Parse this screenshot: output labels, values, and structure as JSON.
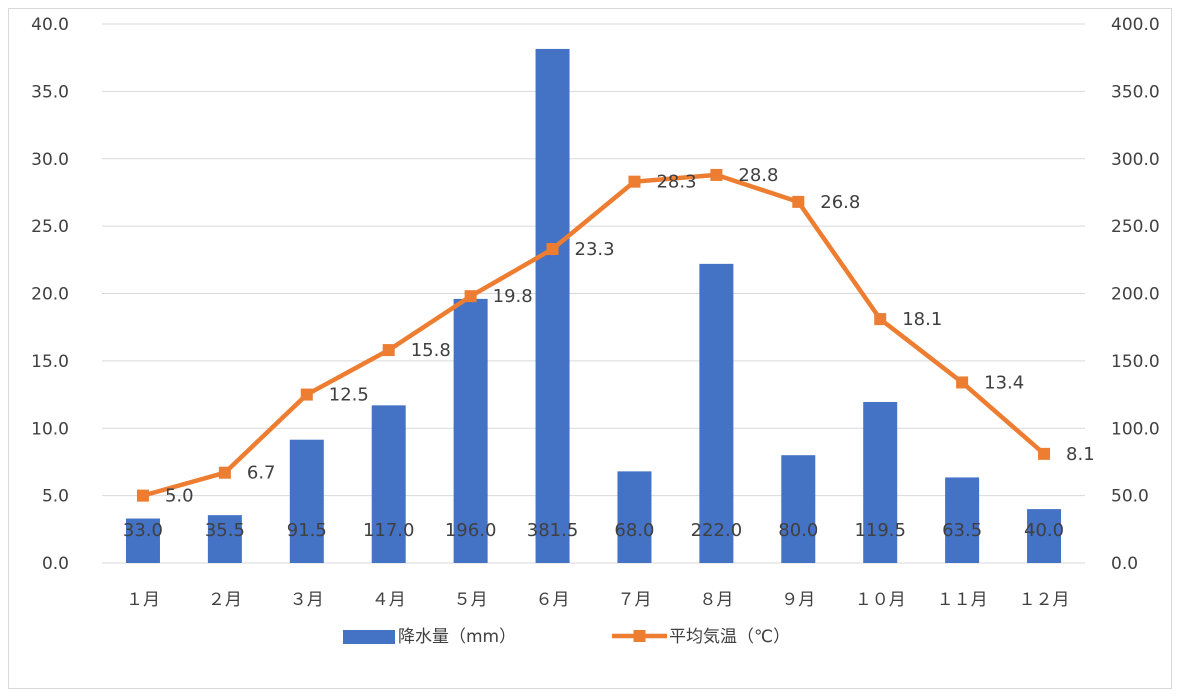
{
  "chart_data": {
    "type": "bar",
    "categories": [
      "１月",
      "２月",
      "３月",
      "４月",
      "５月",
      "６月",
      "７月",
      "８月",
      "９月",
      "１０月",
      "１１月",
      "１２月"
    ],
    "series": [
      {
        "name": "降水量（mm）",
        "type": "bar",
        "axis": "right",
        "color": "#4472C4",
        "values": [
          33.0,
          35.5,
          91.5,
          117.0,
          196.0,
          381.5,
          68.0,
          222.0,
          80.0,
          119.5,
          63.5,
          40.0
        ],
        "labels": [
          "33.0",
          "35.5",
          "91.5",
          "117.0",
          "196.0",
          "381.5",
          "68.0",
          "222.0",
          "80.0",
          "119.5",
          "63.5",
          "40.0"
        ]
      },
      {
        "name": "平均気温（℃）",
        "type": "line",
        "axis": "left",
        "color": "#ED7D31",
        "marker": "square",
        "values": [
          5.0,
          6.7,
          12.5,
          15.8,
          19.8,
          23.3,
          28.3,
          28.8,
          26.8,
          18.1,
          13.4,
          8.1
        ],
        "labels": [
          "5.0",
          "6.7",
          "12.5",
          "15.8",
          "19.8",
          "23.3",
          "28.3",
          "28.8",
          "26.8",
          "18.1",
          "13.4",
          "8.1"
        ]
      }
    ],
    "y_left": {
      "min": 0,
      "max": 40,
      "ticks": [
        "0.0",
        "5.0",
        "10.0",
        "15.0",
        "20.0",
        "25.0",
        "30.0",
        "35.0",
        "40.0"
      ]
    },
    "y_right": {
      "min": 0,
      "max": 400,
      "ticks": [
        "0.0",
        "50.0",
        "100.0",
        "150.0",
        "200.0",
        "250.0",
        "300.0",
        "350.0",
        "400.0"
      ]
    },
    "grid": true,
    "legend_position": "bottom"
  }
}
